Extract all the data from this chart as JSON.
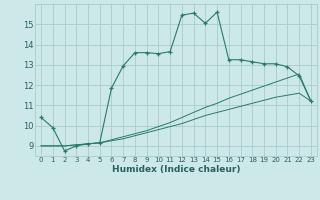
{
  "background_color": "#cce8e8",
  "grid_color": "#aacccc",
  "line_color": "#2a7a6a",
  "xlabel": "Humidex (Indice chaleur)",
  "xlim": [
    -0.5,
    23.5
  ],
  "ylim": [
    8.5,
    16.0
  ],
  "yticks": [
    9,
    10,
    11,
    12,
    13,
    14,
    15
  ],
  "xticks": [
    0,
    1,
    2,
    3,
    4,
    5,
    6,
    7,
    8,
    9,
    10,
    11,
    12,
    13,
    14,
    15,
    16,
    17,
    18,
    19,
    20,
    21,
    22,
    23
  ],
  "series1_x": [
    0,
    1,
    2,
    3,
    4,
    5,
    6,
    7,
    8,
    9,
    10,
    11,
    12,
    13,
    14,
    15,
    16,
    17,
    18,
    19,
    20,
    21,
    22,
    23
  ],
  "series1_y": [
    10.4,
    9.9,
    8.75,
    9.0,
    9.1,
    9.15,
    11.85,
    12.95,
    13.6,
    13.6,
    13.55,
    13.65,
    15.45,
    15.55,
    15.05,
    15.6,
    13.25,
    13.25,
    13.15,
    13.05,
    13.05,
    12.9,
    12.45,
    11.2
  ],
  "series2_x": [
    0,
    1,
    2,
    3,
    4,
    5,
    6,
    7,
    8,
    9,
    10,
    11,
    12,
    13,
    14,
    15,
    16,
    17,
    18,
    19,
    20,
    21,
    22,
    23
  ],
  "series2_y": [
    9.0,
    9.0,
    9.0,
    9.05,
    9.1,
    9.15,
    9.3,
    9.45,
    9.6,
    9.75,
    9.95,
    10.15,
    10.4,
    10.65,
    10.9,
    11.1,
    11.35,
    11.55,
    11.75,
    11.95,
    12.15,
    12.35,
    12.55,
    11.2
  ],
  "series3_x": [
    0,
    1,
    2,
    3,
    4,
    5,
    6,
    7,
    8,
    9,
    10,
    11,
    12,
    13,
    14,
    15,
    16,
    17,
    18,
    19,
    20,
    21,
    22,
    23
  ],
  "series3_y": [
    9.0,
    9.0,
    9.0,
    9.05,
    9.1,
    9.15,
    9.25,
    9.35,
    9.5,
    9.65,
    9.8,
    9.95,
    10.1,
    10.3,
    10.5,
    10.65,
    10.8,
    10.95,
    11.1,
    11.25,
    11.4,
    11.5,
    11.6,
    11.2
  ]
}
